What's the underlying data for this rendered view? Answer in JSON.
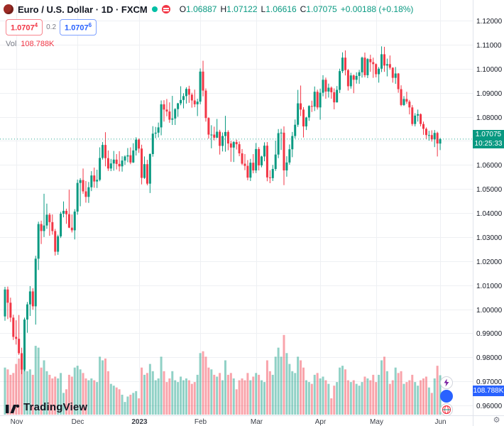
{
  "header": {
    "symbol_title": "Euro / U.S. Dollar · 1D · FXCM",
    "ohlc": {
      "o_label": "O",
      "o": "1.06887",
      "h_label": "H",
      "h": "1.07122",
      "l_label": "L",
      "l": "1.06616",
      "c_label": "C",
      "c": "1.07075",
      "change": "+0.00188 (+0.18%)"
    },
    "sell": {
      "main": "1.0707",
      "sup": "4"
    },
    "spread": "0.2",
    "buy": {
      "main": "1.0707",
      "sup": "6"
    },
    "vol_label": "Vol",
    "vol_value": "108.788K"
  },
  "labels": {
    "current_price": "1.07075",
    "countdown": "10:25:33",
    "volume_badge": "108.788K"
  },
  "watermark": {
    "text": "TradingView"
  },
  "colors": {
    "up": "#089981",
    "down": "#f23645",
    "volume_up": "rgba(8,153,129,0.45)",
    "volume_down": "rgba(242,54,69,0.45)",
    "grid": "#eef0f3",
    "axis_text": "#131722",
    "accent_blue": "#2962ff"
  },
  "chart_data": {
    "type": "candlestick",
    "title": "Euro / U.S. Dollar 1D FXCM",
    "price_axis_ticks": [
      "1.12000",
      "1.11000",
      "1.10000",
      "1.09000",
      "1.08000",
      "1.07000",
      "1.06000",
      "1.05000",
      "1.04000",
      "1.03000",
      "1.02000",
      "1.01000",
      "1.00000",
      "0.99000",
      "0.98000",
      "0.97000",
      "0.96000"
    ],
    "ylim": [
      0.9514,
      1.1286
    ],
    "time_axis_labels": [
      {
        "label": "Nov",
        "index": 4
      },
      {
        "label": "Dec",
        "index": 26
      },
      {
        "label": "2023",
        "index": 48,
        "bold": true
      },
      {
        "label": "Feb",
        "index": 70
      },
      {
        "label": "Mar",
        "index": 90
      },
      {
        "label": "Apr",
        "index": 113
      },
      {
        "label": "May",
        "index": 133
      },
      {
        "label": "Jun",
        "index": 156
      }
    ],
    "current_price": 1.07075,
    "current_volume_k": 108.788,
    "candles_format": [
      "open",
      "high",
      "low",
      "close",
      "volume_k"
    ],
    "candles": [
      [
        0.997,
        1.0093,
        0.9952,
        1.0082,
        130
      ],
      [
        1.0082,
        1.0094,
        0.9959,
        1.0027,
        125
      ],
      [
        1.0027,
        1.0048,
        0.9947,
        0.9965,
        110
      ],
      [
        0.9965,
        0.9977,
        0.9872,
        0.9885,
        115
      ],
      [
        0.9885,
        0.9954,
        0.9853,
        0.9877,
        140
      ],
      [
        0.9877,
        0.9976,
        0.981,
        0.9817,
        155
      ],
      [
        0.9817,
        0.984,
        0.973,
        0.9749,
        150
      ],
      [
        0.9749,
        0.9965,
        0.9742,
        0.9957,
        175
      ],
      [
        0.9957,
        1.003,
        0.9902,
        1.002,
        120
      ],
      [
        1.002,
        1.0096,
        0.9972,
        1.0074,
        125
      ],
      [
        1.0074,
        1.0087,
        0.9998,
        1.0012,
        110
      ],
      [
        1.0012,
        1.0222,
        0.9936,
        1.021,
        190
      ],
      [
        1.021,
        1.0364,
        1.0163,
        1.0354,
        185
      ],
      [
        1.0354,
        1.0368,
        1.0271,
        1.0325,
        130
      ],
      [
        1.0325,
        1.048,
        1.03,
        1.0348,
        150
      ],
      [
        1.0348,
        1.0439,
        1.0334,
        1.0393,
        120
      ],
      [
        1.0393,
        1.04,
        1.0305,
        1.0362,
        110
      ],
      [
        1.0362,
        1.0394,
        1.031,
        1.0325,
        100
      ],
      [
        1.0325,
        1.0334,
        1.0223,
        1.0239,
        105
      ],
      [
        1.0239,
        1.031,
        1.0226,
        1.0303,
        100
      ],
      [
        1.0303,
        1.0405,
        1.0296,
        1.0397,
        115
      ],
      [
        1.0397,
        1.0448,
        1.0382,
        1.0409,
        60
      ],
      [
        1.0409,
        1.0418,
        1.0355,
        1.0395,
        70
      ],
      [
        1.0395,
        1.0497,
        1.0337,
        1.0339,
        110
      ],
      [
        1.0339,
        1.0394,
        1.0319,
        1.0328,
        105
      ],
      [
        1.0328,
        1.0416,
        1.029,
        1.0406,
        130
      ],
      [
        1.0406,
        1.0539,
        1.0393,
        1.0525,
        135
      ],
      [
        1.0525,
        1.0545,
        1.0428,
        1.0537,
        125
      ],
      [
        1.0537,
        1.0585,
        1.048,
        1.049,
        115
      ],
      [
        1.049,
        1.0533,
        1.0443,
        1.0467,
        100
      ],
      [
        1.0467,
        1.0529,
        1.0442,
        1.0507,
        95
      ],
      [
        1.0507,
        1.0574,
        1.0491,
        1.0556,
        100
      ],
      [
        1.0556,
        1.0589,
        1.0505,
        1.0531,
        95
      ],
      [
        1.0531,
        1.058,
        1.0504,
        1.0538,
        90
      ],
      [
        1.0538,
        1.0673,
        1.0532,
        1.0629,
        160
      ],
      [
        1.0629,
        1.0695,
        1.0622,
        1.0683,
        150
      ],
      [
        1.0683,
        1.0736,
        1.0594,
        1.0628,
        155
      ],
      [
        1.0628,
        1.066,
        1.0575,
        1.0585,
        120
      ],
      [
        1.0585,
        1.0625,
        1.0574,
        1.0606,
        85
      ],
      [
        1.0606,
        1.0658,
        1.0576,
        1.0622,
        80
      ],
      [
        1.0622,
        1.0645,
        1.0581,
        1.0604,
        75
      ],
      [
        1.0604,
        1.0657,
        1.0573,
        1.0594,
        70
      ],
      [
        1.0594,
        1.0636,
        1.0572,
        1.0618,
        55
      ],
      [
        1.0618,
        1.064,
        1.06,
        1.0635,
        35
      ],
      [
        1.0635,
        1.067,
        1.0611,
        1.064,
        50
      ],
      [
        1.064,
        1.0673,
        1.0603,
        1.061,
        55
      ],
      [
        1.061,
        1.069,
        1.0608,
        1.066,
        60
      ],
      [
        1.066,
        1.0715,
        1.0639,
        1.0705,
        65
      ],
      [
        1.0705,
        1.071,
        1.065,
        1.0668,
        45
      ],
      [
        1.0668,
        1.0684,
        1.0519,
        1.0546,
        130
      ],
      [
        1.0546,
        1.0635,
        1.0542,
        1.0603,
        110
      ],
      [
        1.0603,
        1.0621,
        1.0515,
        1.0522,
        115
      ],
      [
        1.0522,
        1.0648,
        1.0483,
        1.0645,
        140
      ],
      [
        1.0645,
        1.0761,
        1.0634,
        1.073,
        120
      ],
      [
        1.073,
        1.0758,
        1.0711,
        1.0734,
        95
      ],
      [
        1.0734,
        1.0776,
        1.0714,
        1.0756,
        100
      ],
      [
        1.0756,
        1.0868,
        1.0723,
        1.0852,
        160
      ],
      [
        1.0852,
        1.0869,
        1.078,
        1.083,
        120
      ],
      [
        1.083,
        1.0874,
        1.0802,
        1.0822,
        90
      ],
      [
        1.0822,
        1.086,
        1.0775,
        1.0788,
        100
      ],
      [
        1.0788,
        1.0887,
        1.0766,
        1.0793,
        120
      ],
      [
        1.0793,
        1.0836,
        1.0766,
        1.0832,
        95
      ],
      [
        1.0832,
        1.0858,
        1.08,
        1.0856,
        90
      ],
      [
        1.0856,
        1.0927,
        1.0848,
        1.087,
        105
      ],
      [
        1.087,
        1.0898,
        1.0835,
        1.0886,
        95
      ],
      [
        1.0886,
        1.0923,
        1.0855,
        1.0916,
        100
      ],
      [
        1.0916,
        1.0929,
        1.0858,
        1.0892,
        95
      ],
      [
        1.0892,
        1.09,
        1.0838,
        1.0868,
        85
      ],
      [
        1.0868,
        1.0913,
        1.084,
        1.0852,
        90
      ],
      [
        1.0852,
        1.0875,
        1.0803,
        1.0863,
        110
      ],
      [
        1.0863,
        1.1001,
        1.0852,
        1.0988,
        170
      ],
      [
        1.0988,
        1.1033,
        1.0885,
        1.0909,
        175
      ],
      [
        1.0909,
        1.0918,
        1.078,
        1.0795,
        160
      ],
      [
        1.0795,
        1.0798,
        1.0709,
        1.0726,
        130
      ],
      [
        1.0726,
        1.0765,
        1.0669,
        1.0726,
        125
      ],
      [
        1.0726,
        1.0759,
        1.0702,
        1.0713,
        110
      ],
      [
        1.0713,
        1.0791,
        1.0711,
        1.0738,
        105
      ],
      [
        1.0738,
        1.0746,
        1.0643,
        1.0679,
        115
      ],
      [
        1.0679,
        1.0735,
        1.0656,
        1.072,
        95
      ],
      [
        1.072,
        1.0804,
        1.0655,
        1.0737,
        150
      ],
      [
        1.0737,
        1.0744,
        1.0661,
        1.0689,
        110
      ],
      [
        1.0689,
        1.07,
        1.0613,
        1.0672,
        115
      ],
      [
        1.0672,
        1.0699,
        1.0612,
        1.0695,
        100
      ],
      [
        1.0695,
        1.0705,
        1.0664,
        1.0686,
        70
      ],
      [
        1.0686,
        1.0697,
        1.0636,
        1.0648,
        95
      ],
      [
        1.0648,
        1.0666,
        1.0599,
        1.0605,
        100
      ],
      [
        1.0605,
        1.0645,
        1.0578,
        1.0596,
        95
      ],
      [
        1.0596,
        1.062,
        1.0536,
        1.0547,
        115
      ],
      [
        1.0547,
        1.0625,
        1.0533,
        1.0609,
        95
      ],
      [
        1.0609,
        1.0645,
        1.0565,
        1.0577,
        105
      ],
      [
        1.0577,
        1.0691,
        1.0566,
        1.0666,
        115
      ],
      [
        1.0666,
        1.0674,
        1.0577,
        1.0598,
        110
      ],
      [
        1.0598,
        1.0638,
        1.059,
        1.0635,
        95
      ],
      [
        1.0635,
        1.0694,
        1.0615,
        1.068,
        90
      ],
      [
        1.068,
        1.0695,
        1.0532,
        1.0548,
        150
      ],
      [
        1.0548,
        1.0578,
        1.0524,
        1.0545,
        120
      ],
      [
        1.0545,
        1.06,
        1.0533,
        1.0583,
        110
      ],
      [
        1.0583,
        1.0701,
        1.0575,
        1.0643,
        160
      ],
      [
        1.0643,
        1.0749,
        1.0628,
        1.0732,
        185
      ],
      [
        1.0732,
        1.075,
        1.0662,
        1.0734,
        160
      ],
      [
        1.0734,
        1.076,
        1.0516,
        1.0577,
        220
      ],
      [
        1.0577,
        1.0636,
        1.0551,
        1.061,
        170
      ],
      [
        1.061,
        1.0685,
        1.0601,
        1.0665,
        140
      ],
      [
        1.0665,
        1.0737,
        1.0632,
        1.072,
        120
      ],
      [
        1.072,
        1.0789,
        1.071,
        1.0767,
        115
      ],
      [
        1.0767,
        1.0912,
        1.0758,
        1.0856,
        160
      ],
      [
        1.0856,
        1.093,
        1.0803,
        1.083,
        150
      ],
      [
        1.083,
        1.084,
        1.0714,
        1.076,
        130
      ],
      [
        1.076,
        1.08,
        1.0745,
        1.0797,
        95
      ],
      [
        1.0797,
        1.0848,
        1.0783,
        1.0845,
        90
      ],
      [
        1.0845,
        1.0867,
        1.082,
        1.0842,
        85
      ],
      [
        1.0842,
        1.0926,
        1.0824,
        1.0904,
        110
      ],
      [
        1.0904,
        1.0913,
        1.083,
        1.0839,
        115
      ],
      [
        1.0839,
        1.0917,
        1.0788,
        1.09,
        100
      ],
      [
        1.09,
        1.0973,
        1.0885,
        1.0954,
        105
      ],
      [
        1.0954,
        1.0963,
        1.0875,
        1.0905,
        95
      ],
      [
        1.0905,
        1.0938,
        1.088,
        1.0921,
        85
      ],
      [
        1.0921,
        1.0926,
        1.0875,
        1.0902,
        45
      ],
      [
        1.0902,
        1.0918,
        1.0831,
        1.086,
        80
      ],
      [
        1.086,
        1.0928,
        1.0859,
        1.0912,
        90
      ],
      [
        1.0912,
        1.1,
        1.0899,
        1.099,
        130
      ],
      [
        1.099,
        1.1068,
        1.0982,
        1.1046,
        135
      ],
      [
        1.1046,
        1.1076,
        1.0972,
        1.0994,
        125
      ],
      [
        1.0994,
        1.0999,
        1.0909,
        1.0927,
        95
      ],
      [
        1.0927,
        1.0983,
        1.0917,
        1.0972,
        90
      ],
      [
        1.0972,
        1.0976,
        1.0898,
        1.0954,
        95
      ],
      [
        1.0954,
        1.0985,
        1.0938,
        1.097,
        85
      ],
      [
        1.097,
        1.0995,
        1.0937,
        1.0985,
        80
      ],
      [
        1.0985,
        1.105,
        1.0963,
        1.1046,
        90
      ],
      [
        1.1046,
        1.1067,
        1.0964,
        1.0973,
        105
      ],
      [
        1.0973,
        1.1044,
        1.0961,
        1.104,
        100
      ],
      [
        1.104,
        1.1058,
        1.0987,
        1.1027,
        95
      ],
      [
        1.1027,
        1.1046,
        1.0962,
        1.1019,
        110
      ],
      [
        1.1019,
        1.1022,
        1.0964,
        1.0977,
        90
      ],
      [
        1.0977,
        1.1007,
        1.0942,
        1.1,
        110
      ],
      [
        1.1,
        1.1093,
        1.0986,
        1.106,
        150
      ],
      [
        1.106,
        1.1091,
        1.0987,
        1.1013,
        160
      ],
      [
        1.1013,
        1.1042,
        1.0968,
        1.1019,
        120
      ],
      [
        1.1019,
        1.1055,
        1.0996,
        1.1004,
        85
      ],
      [
        1.1004,
        1.1006,
        1.0942,
        1.0962,
        95
      ],
      [
        1.0962,
        1.1007,
        1.0937,
        1.098,
        130
      ],
      [
        1.098,
        1.0982,
        1.09,
        1.0915,
        115
      ],
      [
        1.0915,
        1.0931,
        1.0844,
        1.0849,
        120
      ],
      [
        1.0849,
        1.0886,
        1.0845,
        1.0874,
        85
      ],
      [
        1.0874,
        1.0904,
        1.0854,
        1.0863,
        90
      ],
      [
        1.0863,
        1.087,
        1.081,
        1.0839,
        95
      ],
      [
        1.0839,
        1.0849,
        1.0762,
        1.077,
        110
      ],
      [
        1.077,
        1.0815,
        1.076,
        1.0805,
        90
      ],
      [
        1.0805,
        1.083,
        1.078,
        1.0811,
        80
      ],
      [
        1.0811,
        1.0814,
        1.076,
        1.077,
        95
      ],
      [
        1.077,
        1.078,
        1.0725,
        1.075,
        100
      ],
      [
        1.075,
        1.0756,
        1.0708,
        1.0724,
        105
      ],
      [
        1.0724,
        1.0742,
        1.0701,
        1.0724,
        75
      ],
      [
        1.0724,
        1.0744,
        1.0697,
        1.0706,
        60
      ],
      [
        1.0706,
        1.0745,
        1.0674,
        1.0733,
        100
      ],
      [
        1.0733,
        1.0738,
        1.0635,
        1.0689,
        135
      ],
      [
        1.06887,
        1.07122,
        1.06616,
        1.07075,
        108.788
      ]
    ]
  }
}
